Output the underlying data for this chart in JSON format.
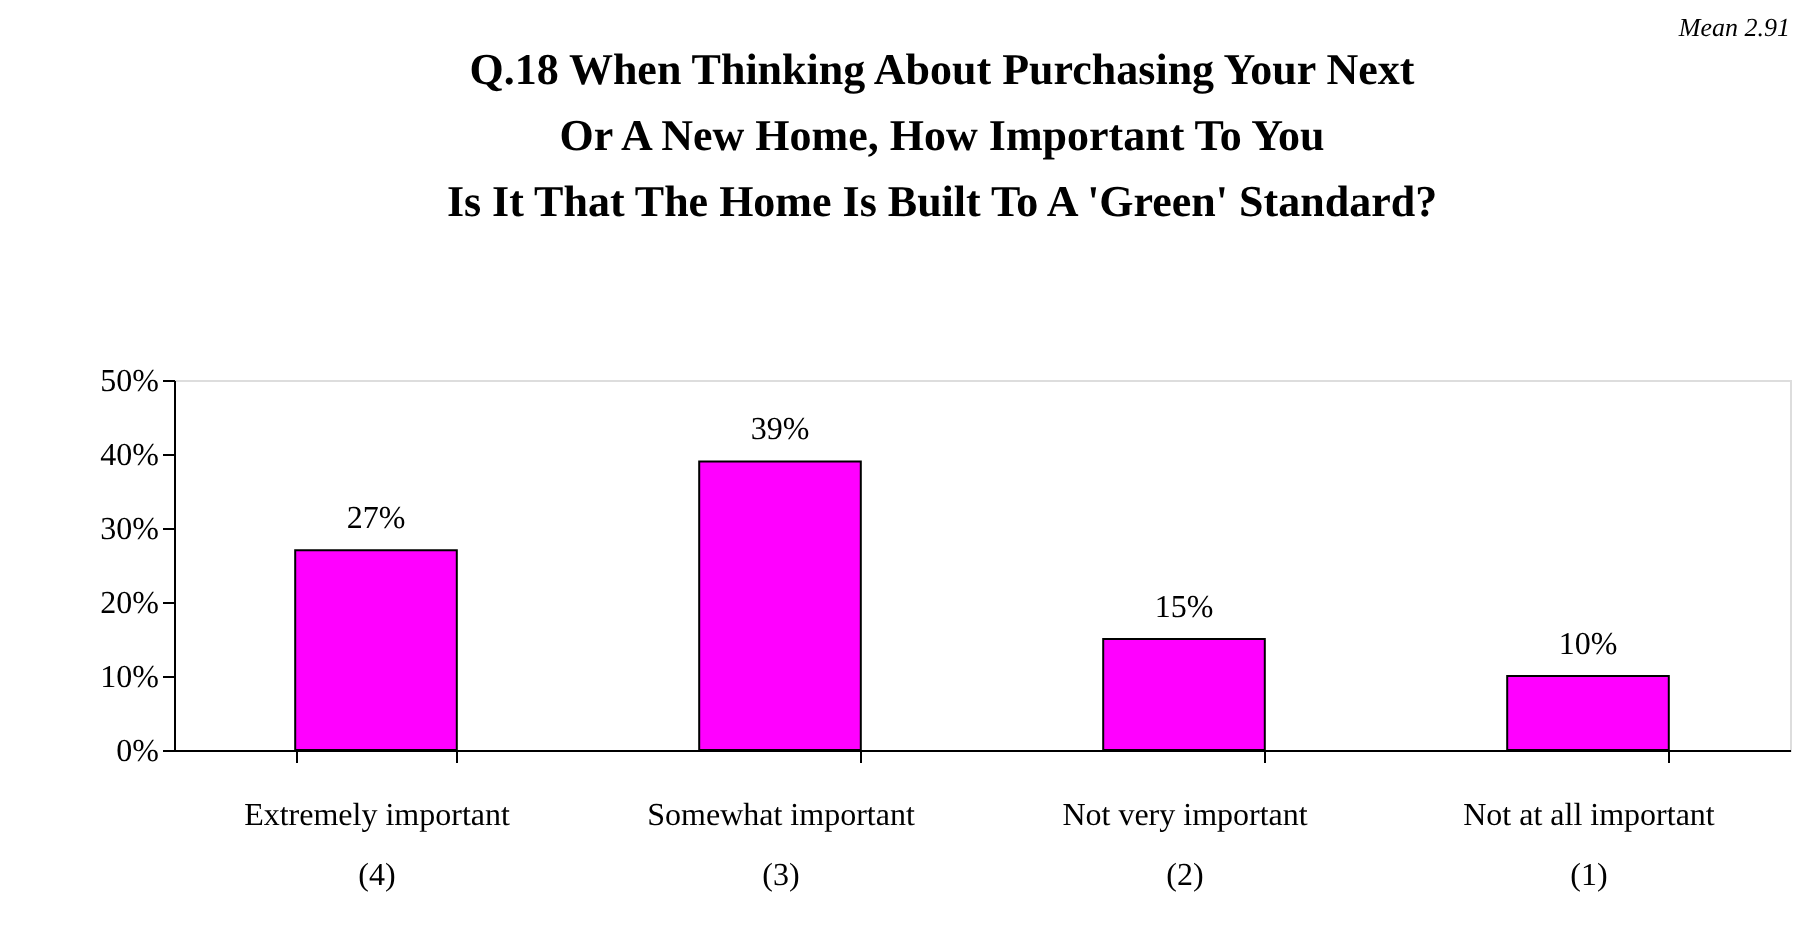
{
  "chart_data": {
    "type": "bar",
    "title": "Q.18  When Thinking About Purchasing Your Next\nOr A New Home, How Important To You\nIs It That The Home Is Built To A 'Green' Standard?",
    "annotations": [
      "Mean 2.91"
    ],
    "categories": [
      "Extremely important\n(4)",
      "Somewhat important\n(3)",
      "Not very important\n(2)",
      "Not at all important\n(1)"
    ],
    "values": [
      27,
      39,
      15,
      10
    ],
    "value_labels": [
      "27%",
      "39%",
      "15%",
      "10%"
    ],
    "color": "#ff00ff",
    "ylim": [
      0,
      50
    ],
    "yticks": [
      {
        "value": 0,
        "label": "0%"
      },
      {
        "value": 10,
        "label": "10%"
      },
      {
        "value": 20,
        "label": "20%"
      },
      {
        "value": 30,
        "label": "30%"
      },
      {
        "value": 40,
        "label": "40%"
      },
      {
        "value": 50,
        "label": "50%"
      }
    ],
    "grid": false
  }
}
